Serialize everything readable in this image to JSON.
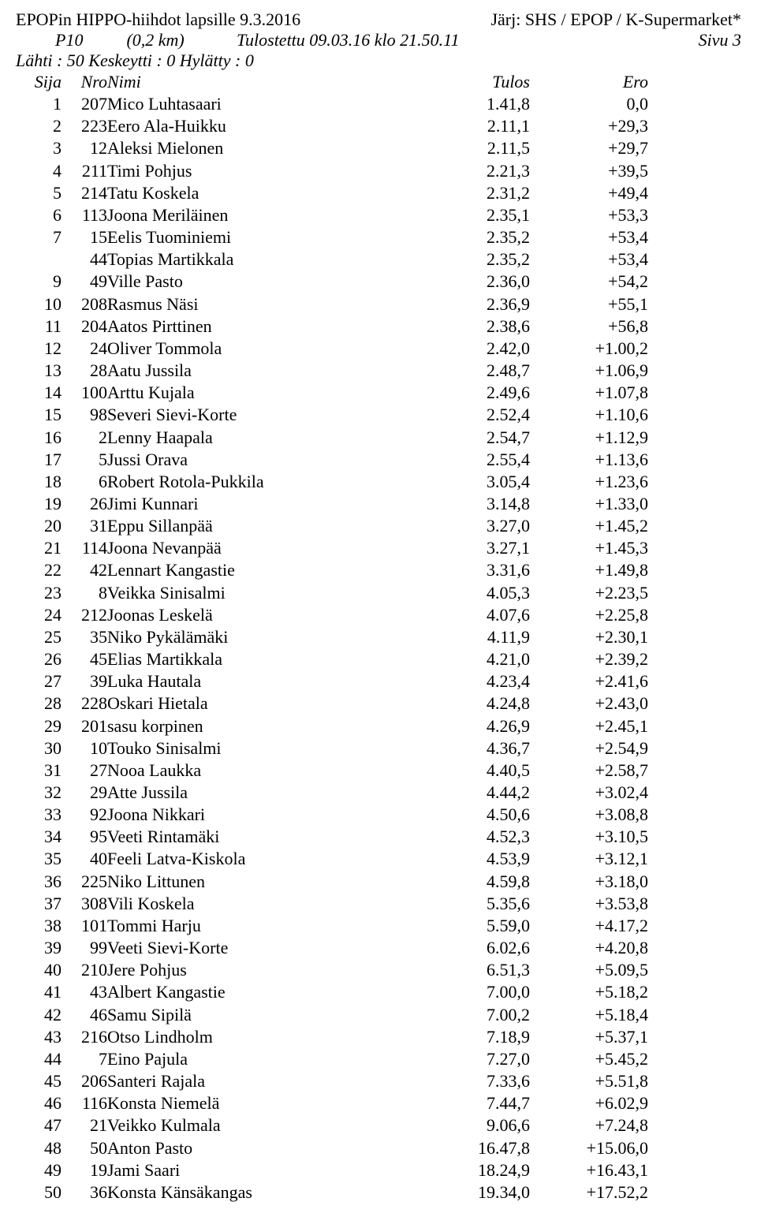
{
  "header": {
    "title_left": "EPOPin HIPPO-hiihdot lapsille 9.3.2016",
    "title_right": "Järj: SHS / EPOP / K-Supermarket*",
    "tulostettu": "Tulostettu 09.03.16  klo 21.50.11",
    "sivu": "Sivu 3",
    "group": "P10",
    "dist": "(0,2 km)",
    "lahti": "Lähti : 50   Keskeytti : 0   Hylätty : 0"
  },
  "cols": {
    "sija": "Sija",
    "nro": "Nro",
    "nimi": "Nimi",
    "tulos": "Tulos",
    "ero": "Ero"
  },
  "rows": [
    {
      "s": "1",
      "n": "207",
      "nimi": "Mico Luhtasaari",
      "t": "1.41,8",
      "e": "0,0"
    },
    {
      "s": "2",
      "n": "223",
      "nimi": "Eero Ala-Huikku",
      "t": "2.11,1",
      "e": "+29,3"
    },
    {
      "s": "3",
      "n": "12",
      "nimi": "Aleksi Mielonen",
      "t": "2.11,5",
      "e": "+29,7"
    },
    {
      "s": "4",
      "n": "211",
      "nimi": "Timi Pohjus",
      "t": "2.21,3",
      "e": "+39,5"
    },
    {
      "s": "5",
      "n": "214",
      "nimi": "Tatu Koskela",
      "t": "2.31,2",
      "e": "+49,4"
    },
    {
      "s": "6",
      "n": "113",
      "nimi": "Joona Meriläinen",
      "t": "2.35,1",
      "e": "+53,3"
    },
    {
      "s": "7",
      "n": "15",
      "nimi": "Eelis Tuominiemi",
      "t": "2.35,2",
      "e": "+53,4"
    },
    {
      "s": "",
      "n": "44",
      "nimi": "Topias Martikkala",
      "t": "2.35,2",
      "e": "+53,4"
    },
    {
      "s": "9",
      "n": "49",
      "nimi": "Ville Pasto",
      "t": "2.36,0",
      "e": "+54,2"
    },
    {
      "s": "10",
      "n": "208",
      "nimi": "Rasmus Näsi",
      "t": "2.36,9",
      "e": "+55,1"
    },
    {
      "s": "11",
      "n": "204",
      "nimi": "Aatos Pirttinen",
      "t": "2.38,6",
      "e": "+56,8"
    },
    {
      "s": "12",
      "n": "24",
      "nimi": "Oliver Tommola",
      "t": "2.42,0",
      "e": "+1.00,2"
    },
    {
      "s": "13",
      "n": "28",
      "nimi": "Aatu Jussila",
      "t": "2.48,7",
      "e": "+1.06,9"
    },
    {
      "s": "14",
      "n": "100",
      "nimi": "Arttu Kujala",
      "t": "2.49,6",
      "e": "+1.07,8"
    },
    {
      "s": "15",
      "n": "98",
      "nimi": "Severi Sievi-Korte",
      "t": "2.52,4",
      "e": "+1.10,6"
    },
    {
      "s": "16",
      "n": "2",
      "nimi": "Lenny Haapala",
      "t": "2.54,7",
      "e": "+1.12,9"
    },
    {
      "s": "17",
      "n": "5",
      "nimi": "Jussi Orava",
      "t": "2.55,4",
      "e": "+1.13,6"
    },
    {
      "s": "18",
      "n": "6",
      "nimi": "Robert Rotola-Pukkila",
      "t": "3.05,4",
      "e": "+1.23,6"
    },
    {
      "s": "19",
      "n": "26",
      "nimi": "Jimi Kunnari",
      "t": "3.14,8",
      "e": "+1.33,0"
    },
    {
      "s": "20",
      "n": "31",
      "nimi": "Eppu Sillanpää",
      "t": "3.27,0",
      "e": "+1.45,2"
    },
    {
      "s": "21",
      "n": "114",
      "nimi": "Joona Nevanpää",
      "t": "3.27,1",
      "e": "+1.45,3"
    },
    {
      "s": "22",
      "n": "42",
      "nimi": "Lennart Kangastie",
      "t": "3.31,6",
      "e": "+1.49,8"
    },
    {
      "s": "23",
      "n": "8",
      "nimi": "Veikka Sinisalmi",
      "t": "4.05,3",
      "e": "+2.23,5"
    },
    {
      "s": "24",
      "n": "212",
      "nimi": "Joonas Leskelä",
      "t": "4.07,6",
      "e": "+2.25,8"
    },
    {
      "s": "25",
      "n": "35",
      "nimi": "Niko Pykälämäki",
      "t": "4.11,9",
      "e": "+2.30,1"
    },
    {
      "s": "26",
      "n": "45",
      "nimi": "Elias Martikkala",
      "t": "4.21,0",
      "e": "+2.39,2"
    },
    {
      "s": "27",
      "n": "39",
      "nimi": "Luka Hautala",
      "t": "4.23,4",
      "e": "+2.41,6"
    },
    {
      "s": "28",
      "n": "228",
      "nimi": "Oskari Hietala",
      "t": "4.24,8",
      "e": "+2.43,0"
    },
    {
      "s": "29",
      "n": "201",
      "nimi": "sasu korpinen",
      "t": "4.26,9",
      "e": "+2.45,1"
    },
    {
      "s": "30",
      "n": "10",
      "nimi": "Touko Sinisalmi",
      "t": "4.36,7",
      "e": "+2.54,9"
    },
    {
      "s": "31",
      "n": "27",
      "nimi": "Nooa Laukka",
      "t": "4.40,5",
      "e": "+2.58,7"
    },
    {
      "s": "32",
      "n": "29",
      "nimi": "Atte Jussila",
      "t": "4.44,2",
      "e": "+3.02,4"
    },
    {
      "s": "33",
      "n": "92",
      "nimi": "Joona Nikkari",
      "t": "4.50,6",
      "e": "+3.08,8"
    },
    {
      "s": "34",
      "n": "95",
      "nimi": "Veeti Rintamäki",
      "t": "4.52,3",
      "e": "+3.10,5"
    },
    {
      "s": "35",
      "n": "40",
      "nimi": "Feeli Latva-Kiskola",
      "t": "4.53,9",
      "e": "+3.12,1"
    },
    {
      "s": "36",
      "n": "225",
      "nimi": "Niko Littunen",
      "t": "4.59,8",
      "e": "+3.18,0"
    },
    {
      "s": "37",
      "n": "308",
      "nimi": "Vili Koskela",
      "t": "5.35,6",
      "e": "+3.53,8"
    },
    {
      "s": "38",
      "n": "101",
      "nimi": "Tommi Harju",
      "t": "5.59,0",
      "e": "+4.17,2"
    },
    {
      "s": "39",
      "n": "99",
      "nimi": "Veeti Sievi-Korte",
      "t": "6.02,6",
      "e": "+4.20,8"
    },
    {
      "s": "40",
      "n": "210",
      "nimi": "Jere Pohjus",
      "t": "6.51,3",
      "e": "+5.09,5"
    },
    {
      "s": "41",
      "n": "43",
      "nimi": "Albert Kangastie",
      "t": "7.00,0",
      "e": "+5.18,2"
    },
    {
      "s": "42",
      "n": "46",
      "nimi": "Samu Sipilä",
      "t": "7.00,2",
      "e": "+5.18,4"
    },
    {
      "s": "43",
      "n": "216",
      "nimi": "Otso Lindholm",
      "t": "7.18,9",
      "e": "+5.37,1"
    },
    {
      "s": "44",
      "n": "7",
      "nimi": "Eino Pajula",
      "t": "7.27,0",
      "e": "+5.45,2"
    },
    {
      "s": "45",
      "n": "206",
      "nimi": "Santeri Rajala",
      "t": "7.33,6",
      "e": "+5.51,8"
    },
    {
      "s": "46",
      "n": "116",
      "nimi": "Konsta Niemelä",
      "t": "7.44,7",
      "e": "+6.02,9"
    },
    {
      "s": "47",
      "n": "21",
      "nimi": "Veikko Kulmala",
      "t": "9.06,6",
      "e": "+7.24,8"
    },
    {
      "s": "48",
      "n": "50",
      "nimi": "Anton Pasto",
      "t": "16.47,8",
      "e": "+15.06,0"
    },
    {
      "s": "49",
      "n": "19",
      "nimi": "Jami Saari",
      "t": "18.24,9",
      "e": "+16.43,1"
    },
    {
      "s": "50",
      "n": "36",
      "nimi": "Konsta Känsäkangas",
      "t": "19.34,0",
      "e": "+17.52,2"
    }
  ]
}
